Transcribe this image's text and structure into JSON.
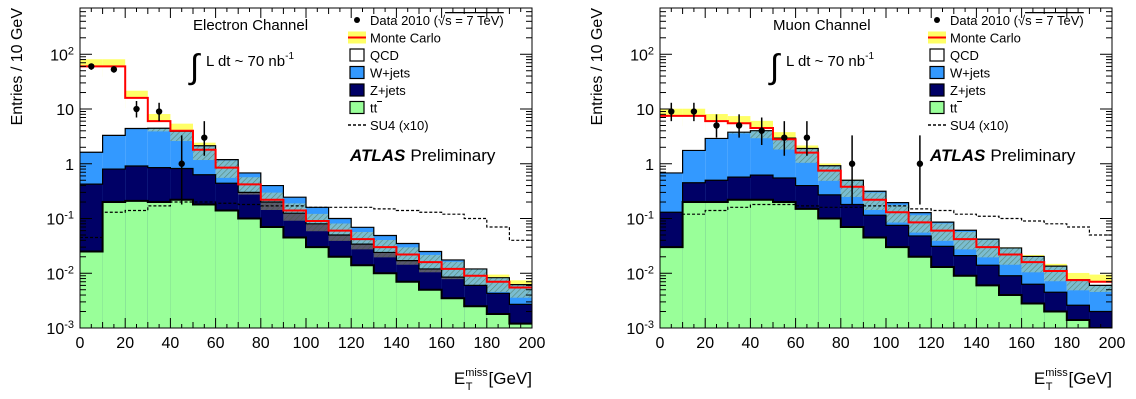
{
  "chart_data": [
    {
      "type": "histogram",
      "channel_label": "Electron Channel",
      "lumi_label": "L dt ~ 70 nb",
      "lumi_sup": "-1",
      "atlas_bold": "ATLAS",
      "atlas_label": "Preliminary",
      "ylabel": "Entries / 10 GeV",
      "xlabel_main": "E",
      "xlabel_sup": "miss",
      "xlabel_sub": "T",
      "xlabel_unit": "[GeV]",
      "xlim": [
        0,
        200
      ],
      "ylim": [
        0.001,
        700
      ],
      "yscale": "log",
      "bin_edges": [
        0,
        10,
        20,
        30,
        40,
        50,
        60,
        70,
        80,
        90,
        100,
        110,
        120,
        130,
        140,
        150,
        160,
        170,
        180,
        190,
        200
      ],
      "xticks": [
        0,
        20,
        40,
        60,
        80,
        100,
        120,
        140,
        160,
        180,
        200
      ],
      "xtick_labels": [
        "0",
        "20",
        "40",
        "60",
        "80",
        "100",
        "120",
        "140",
        "160",
        "180",
        "200"
      ],
      "yticks": [
        {
          "value": 0.001,
          "base": "10",
          "exp": "-3"
        },
        {
          "value": 0.01,
          "base": "10",
          "exp": "-2"
        },
        {
          "value": 0.1,
          "base": "10",
          "exp": "-1"
        },
        {
          "value": 1,
          "base": "1",
          "exp": ""
        },
        {
          "value": 10,
          "base": "10",
          "exp": ""
        },
        {
          "value": 100,
          "base": "10",
          "exp": "2"
        }
      ],
      "stack": {
        "ttbar": [
          0.025,
          0.2,
          0.21,
          0.2,
          0.22,
          0.18,
          0.14,
          0.1,
          0.07,
          0.045,
          0.03,
          0.02,
          0.014,
          0.01,
          0.007,
          0.005,
          0.0035,
          0.0025,
          0.0018,
          0.0012
        ],
        "zjets": [
          0.4,
          0.6,
          0.7,
          0.65,
          0.6,
          0.45,
          0.3,
          0.2,
          0.13,
          0.08,
          0.05,
          0.03,
          0.02,
          0.014,
          0.01,
          0.007,
          0.005,
          0.0035,
          0.0025,
          0.0015
        ],
        "wjets": [
          1.2,
          2.5,
          3.5,
          3.6,
          3.1,
          1.5,
          0.75,
          0.38,
          0.2,
          0.12,
          0.08,
          0.05,
          0.035,
          0.025,
          0.018,
          0.013,
          0.009,
          0.006,
          0.004,
          0.0035
        ],
        "mc_total": [
          60,
          60,
          16,
          6,
          4,
          1.8,
          0.85,
          0.42,
          0.22,
          0.14,
          0.09,
          0.06,
          0.042,
          0.03,
          0.022,
          0.016,
          0.012,
          0.009,
          0.007,
          0.0055
        ]
      },
      "mc_band_rel": 0.35,
      "su4": [
        0.045,
        0.13,
        0.14,
        0.17,
        0.2,
        0.2,
        0.19,
        0.18,
        0.17,
        0.17,
        0.16,
        0.16,
        0.16,
        0.15,
        0.14,
        0.13,
        0.12,
        0.1,
        0.07,
        0.04
      ],
      "data_points": [
        {
          "x": 5,
          "y": 60,
          "lo": 52,
          "hi": 68
        },
        {
          "x": 15,
          "y": 53,
          "lo": 46,
          "hi": 60
        },
        {
          "x": 25,
          "y": 10,
          "lo": 7,
          "hi": 14
        },
        {
          "x": 35,
          "y": 9,
          "lo": 6,
          "hi": 13
        },
        {
          "x": 45,
          "y": 1,
          "lo": 0.18,
          "hi": 3.3
        },
        {
          "x": 55,
          "y": 3,
          "lo": 1.4,
          "hi": 6
        }
      ]
    },
    {
      "type": "histogram",
      "channel_label": "Muon Channel",
      "lumi_label": "L dt ~ 70 nb",
      "lumi_sup": "-1",
      "atlas_bold": "ATLAS",
      "atlas_label": "Preliminary",
      "ylabel": "Entries / 10 GeV",
      "xlabel_main": "E",
      "xlabel_sup": "miss",
      "xlabel_sub": "T",
      "xlabel_unit": "[GeV]",
      "xlim": [
        0,
        200
      ],
      "ylim": [
        0.001,
        700
      ],
      "yscale": "log",
      "bin_edges": [
        0,
        10,
        20,
        30,
        40,
        50,
        60,
        70,
        80,
        90,
        100,
        110,
        120,
        130,
        140,
        150,
        160,
        170,
        180,
        190,
        200
      ],
      "xticks": [
        0,
        20,
        40,
        60,
        80,
        100,
        120,
        140,
        160,
        180,
        200
      ],
      "xtick_labels": [
        "0",
        "20",
        "40",
        "60",
        "80",
        "100",
        "120",
        "140",
        "160",
        "180",
        "200"
      ],
      "yticks": [
        {
          "value": 0.001,
          "base": "10",
          "exp": "-3"
        },
        {
          "value": 0.01,
          "base": "10",
          "exp": "-2"
        },
        {
          "value": 0.1,
          "base": "10",
          "exp": "-1"
        },
        {
          "value": 1,
          "base": "1",
          "exp": ""
        },
        {
          "value": 10,
          "base": "10",
          "exp": ""
        },
        {
          "value": 100,
          "base": "10",
          "exp": "2"
        }
      ],
      "stack": {
        "ttbar": [
          0.03,
          0.2,
          0.2,
          0.22,
          0.22,
          0.2,
          0.15,
          0.1,
          0.07,
          0.045,
          0.03,
          0.02,
          0.013,
          0.009,
          0.006,
          0.004,
          0.0028,
          0.002,
          0.0014,
          0.001
        ],
        "zjets": [
          0.1,
          0.25,
          0.3,
          0.35,
          0.4,
          0.35,
          0.25,
          0.17,
          0.11,
          0.07,
          0.045,
          0.028,
          0.018,
          0.012,
          0.008,
          0.005,
          0.0035,
          0.0025,
          0.0012,
          0.001
        ],
        "wjets": [
          0.55,
          1.3,
          2.4,
          3.2,
          3.4,
          2.4,
          1.5,
          0.65,
          0.32,
          0.2,
          0.12,
          0.08,
          0.055,
          0.04,
          0.028,
          0.02,
          0.014,
          0.009,
          0.005,
          0.004
        ],
        "mc_total": [
          7.5,
          7.5,
          6,
          5.5,
          4.5,
          2.8,
          1.6,
          0.75,
          0.38,
          0.22,
          0.13,
          0.085,
          0.06,
          0.042,
          0.03,
          0.022,
          0.016,
          0.011,
          0.0075,
          0.007
        ]
      },
      "mc_band_rel": 0.35,
      "su4": [
        0.03,
        0.12,
        0.14,
        0.16,
        0.18,
        0.18,
        0.17,
        0.16,
        0.16,
        0.17,
        0.17,
        0.15,
        0.14,
        0.12,
        0.11,
        0.1,
        0.09,
        0.08,
        0.07,
        0.05
      ],
      "data_points": [
        {
          "x": 5,
          "y": 9,
          "lo": 6,
          "hi": 13
        },
        {
          "x": 15,
          "y": 9,
          "lo": 6,
          "hi": 13
        },
        {
          "x": 25,
          "y": 5,
          "lo": 3,
          "hi": 8
        },
        {
          "x": 35,
          "y": 5,
          "lo": 3,
          "hi": 8
        },
        {
          "x": 45,
          "y": 4,
          "lo": 2.2,
          "hi": 7
        },
        {
          "x": 55,
          "y": 3,
          "lo": 1.4,
          "hi": 6
        },
        {
          "x": 65,
          "y": 3,
          "lo": 1.4,
          "hi": 6
        },
        {
          "x": 85,
          "y": 1,
          "lo": 0.18,
          "hi": 3.3
        },
        {
          "x": 115,
          "y": 1,
          "lo": 0.18,
          "hi": 3.3
        }
      ]
    }
  ],
  "legend": [
    {
      "key": "data",
      "label": "Data 2010 (",
      "extra": "s = 7 TeV)"
    },
    {
      "key": "mc",
      "label": "Monte Carlo"
    },
    {
      "key": "qcd",
      "label": "QCD"
    },
    {
      "key": "wjets",
      "label": "W+jets"
    },
    {
      "key": "zjets",
      "label": "Z+jets"
    },
    {
      "key": "ttbar",
      "label": "tt"
    },
    {
      "key": "su4",
      "label": "SU4 (x10)"
    }
  ],
  "colors": {
    "wjets": "#3399ff",
    "zjets": "#000066",
    "ttbar": "#99ff99",
    "qcd": "#ffffff",
    "mc_line": "#ff0000",
    "mc_band": "#ffff66",
    "su4": "#000000",
    "data": "#000000"
  }
}
